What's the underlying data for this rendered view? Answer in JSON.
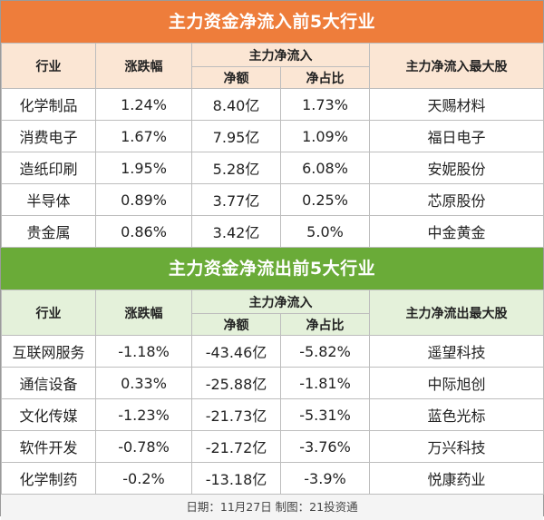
{
  "inflow": {
    "title": "主力资金净流入前5大行业",
    "headers": {
      "industry": "行业",
      "change": "涨跌幅",
      "main_flow": "主力净流入",
      "net": "净额",
      "ratio": "净占比",
      "top_stock": "主力净流入最大股"
    },
    "rows": [
      {
        "industry": "化学制品",
        "change": "1.24%",
        "net": "8.40亿",
        "ratio": "1.73%",
        "top_stock": "天赐材料"
      },
      {
        "industry": "消费电子",
        "change": "1.67%",
        "net": "7.95亿",
        "ratio": "1.09%",
        "top_stock": "福日电子"
      },
      {
        "industry": "造纸印刷",
        "change": "1.95%",
        "net": "5.28亿",
        "ratio": "6.08%",
        "top_stock": "安妮股份"
      },
      {
        "industry": "半导体",
        "change": "0.89%",
        "net": "3.77亿",
        "ratio": "0.25%",
        "top_stock": "芯原股份"
      },
      {
        "industry": "贵金属",
        "change": "0.86%",
        "net": "3.42亿",
        "ratio": "5.0%",
        "top_stock": "中金黄金"
      }
    ]
  },
  "outflow": {
    "title": "主力资金净流出前5大行业",
    "headers": {
      "industry": "行业",
      "change": "涨跌幅",
      "main_flow": "主力净流入",
      "net": "净额",
      "ratio": "净占比",
      "top_stock": "主力净流出最大股"
    },
    "rows": [
      {
        "industry": "互联网服务",
        "change": "-1.18%",
        "net": "-43.46亿",
        "ratio": "-5.82%",
        "top_stock": "遥望科技"
      },
      {
        "industry": "通信设备",
        "change": "0.33%",
        "net": "-25.88亿",
        "ratio": "-1.81%",
        "top_stock": "中际旭创"
      },
      {
        "industry": "文化传媒",
        "change": "-1.23%",
        "net": "-21.73亿",
        "ratio": "-5.31%",
        "top_stock": "蓝色光标"
      },
      {
        "industry": "软件开发",
        "change": "-0.78%",
        "net": "-21.72亿",
        "ratio": "-3.76%",
        "top_stock": "万兴科技"
      },
      {
        "industry": "化学制药",
        "change": "-0.2%",
        "net": "-13.18亿",
        "ratio": "-3.9%",
        "top_stock": "悦康药业"
      }
    ]
  },
  "footer": "日期：11月27日 制图：21投资通",
  "colors": {
    "inflow_banner": "#ee7d3b",
    "inflow_header": "#fbe6d4",
    "outflow_banner": "#6aab38",
    "outflow_header": "#e4f1da"
  }
}
